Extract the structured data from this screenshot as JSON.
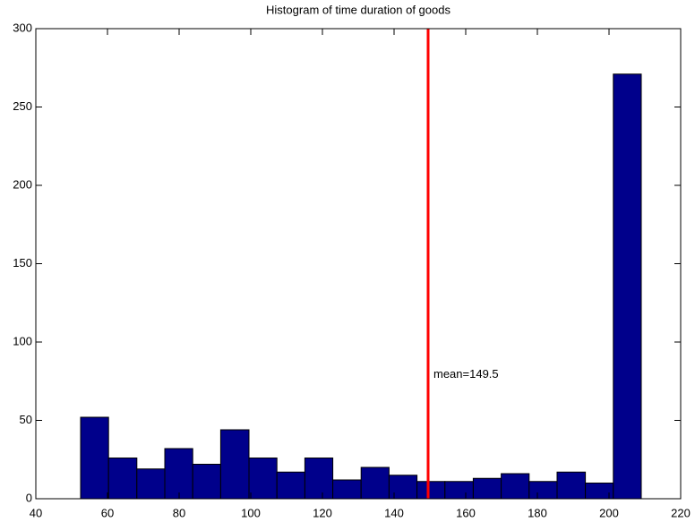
{
  "chart_data": {
    "type": "histogram",
    "title": "Histogram of time duration of goods",
    "bins": [
      52.5,
      60.3,
      68.2,
      76.0,
      83.8,
      91.6,
      99.5,
      107.3,
      115.1,
      122.9,
      130.8,
      138.6,
      146.4,
      154.2,
      162.1,
      169.9,
      177.7,
      185.5,
      193.4,
      201.2,
      209.0
    ],
    "values": [
      52,
      26,
      19,
      32,
      22,
      44,
      26,
      17,
      26,
      12,
      20,
      15,
      11,
      11,
      13,
      16,
      11,
      17,
      10,
      271
    ],
    "color": "#00008b",
    "mean_line": {
      "value": 149.5,
      "label": "mean=149.5",
      "color": "#ff0000"
    },
    "xlim": [
      40,
      220
    ],
    "xticks": [
      40,
      60,
      80,
      100,
      120,
      140,
      160,
      180,
      200,
      220
    ],
    "ylim": [
      0,
      300
    ],
    "yticks": [
      0,
      50,
      100,
      150,
      200,
      250,
      300
    ],
    "grid": false
  }
}
